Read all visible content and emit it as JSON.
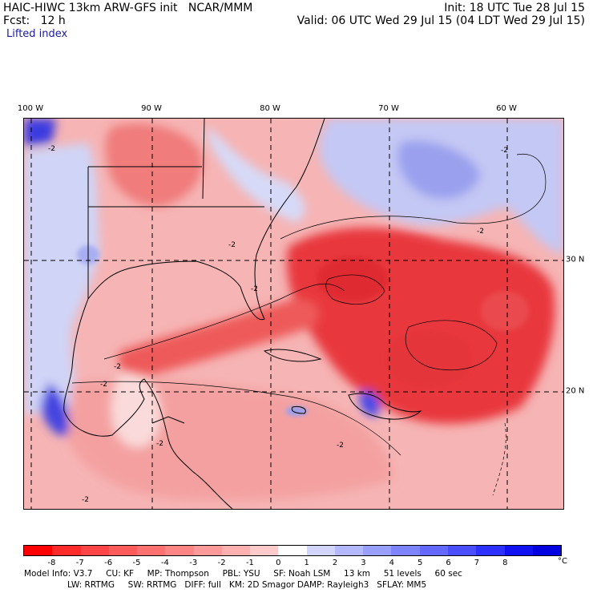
{
  "header": {
    "model_line": "HAIC-HIWC 13km ARW-GFS init   NCAR/MMM",
    "fcst_line": "Fcst:   12 h",
    "field": "Lifted index",
    "init_line": "Init: 18 UTC Tue 28 Jul 15",
    "valid_line": "Valid: 06 UTC Wed 29 Jul 15 (04 LDT Wed 29 Jul 15)"
  },
  "map": {
    "lon_labels": [
      "100 W",
      "90 W",
      "80 W",
      "70 W",
      "60 W"
    ],
    "lat_labels": [
      "30 N",
      "20 N"
    ],
    "contour_label": "-2",
    "colors": {
      "ocean_base": "#f6b4b4",
      "strong_negative": "#e8383c",
      "moderate_negative": "#f07b7b",
      "light_negative": "#fadada",
      "positive": "#c4c8f4",
      "strong_positive": "#3a3ae0"
    }
  },
  "colorbar": {
    "ticks": [
      "-8",
      "-7",
      "-6",
      "-5",
      "-4",
      "-3",
      "-2",
      "-1",
      "0",
      "1",
      "2",
      "3",
      "4",
      "5",
      "6",
      "7",
      "8"
    ],
    "unit": "°C",
    "colors": [
      "#ff0000",
      "#ff2a2a",
      "#ff4545",
      "#ff5b5b",
      "#ff7070",
      "#ff8484",
      "#ff9a9a",
      "#ffb1b1",
      "#ffcaca",
      "#ffffff",
      "#d0d4ff",
      "#b4b9ff",
      "#999fff",
      "#7e84ff",
      "#6468ff",
      "#4a4eff",
      "#2e30ff",
      "#1010f0",
      "#0000e0"
    ]
  },
  "footer": {
    "row1": "Model Info: V3.7     CU: KF     MP: Thompson     PBL: YSU     SF: Noah LSM     13 km     51 levels     60 sec",
    "row2": "LW: RRTMG     SW: RRTMG   DIFF: full   KM: 2D Smagor DAMP: Rayleigh3   SFLAY: MM5"
  }
}
